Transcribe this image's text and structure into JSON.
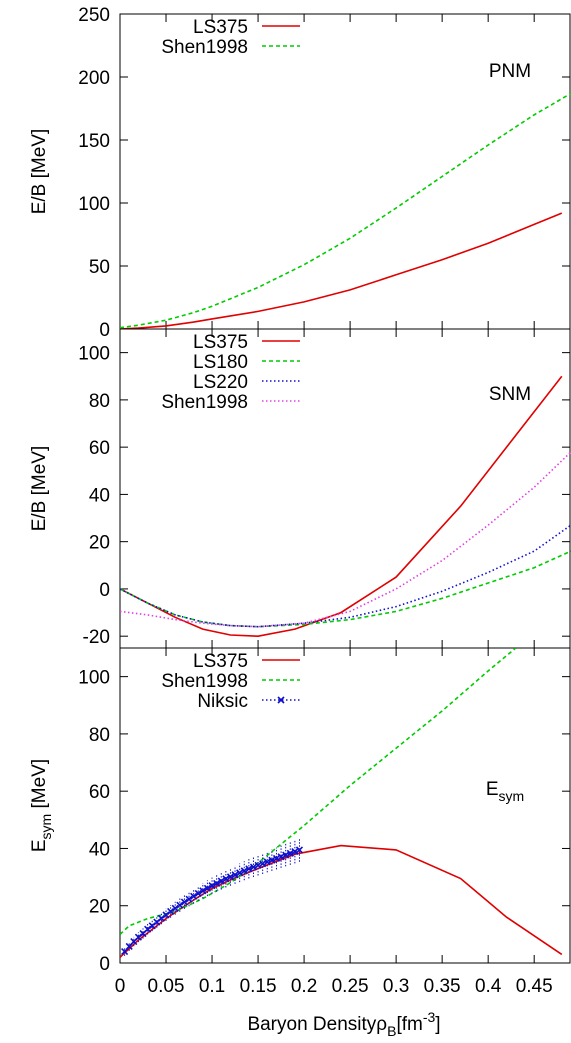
{
  "chart_data": [
    {
      "type": "line",
      "title": "",
      "annotation": "PNM",
      "ylabel": "E/B [MeV]",
      "xlabel": "",
      "xlim": [
        0,
        0.49
      ],
      "ylim": [
        0,
        250
      ],
      "yticks": [
        0,
        50,
        100,
        150,
        200,
        250
      ],
      "legend_position": "top-left",
      "series": [
        {
          "name": "LS375",
          "color": "#e00000",
          "dash": "solid",
          "x": [
            0,
            0.02,
            0.05,
            0.08,
            0.1,
            0.15,
            0.2,
            0.25,
            0.3,
            0.35,
            0.4,
            0.45,
            0.48
          ],
          "y": [
            0,
            0.7,
            2.5,
            5.5,
            8,
            14,
            21.5,
            31,
            43,
            55,
            68,
            83,
            92
          ]
        },
        {
          "name": "Shen1998",
          "color": "#00cc00",
          "dash": "4,3",
          "x": [
            0,
            0.02,
            0.05,
            0.08,
            0.1,
            0.15,
            0.2,
            0.25,
            0.3,
            0.35,
            0.4,
            0.45,
            0.49
          ],
          "y": [
            1,
            3,
            7,
            13,
            18,
            33,
            51,
            72,
            96,
            121,
            146,
            170,
            187
          ]
        }
      ]
    },
    {
      "type": "line",
      "title": "",
      "annotation": "SNM",
      "ylabel": "E/B [MeV]",
      "xlabel": "",
      "xlim": [
        0,
        0.49
      ],
      "ylim": [
        -25,
        110
      ],
      "yticks": [
        -20,
        0,
        20,
        40,
        60,
        80,
        100
      ],
      "legend_position": "top-left",
      "series": [
        {
          "name": "LS375",
          "color": "#e00000",
          "dash": "solid",
          "x": [
            0,
            0.03,
            0.06,
            0.09,
            0.12,
            0.15,
            0.19,
            0.24,
            0.3,
            0.37,
            0.42,
            0.48
          ],
          "y": [
            0,
            -6,
            -12,
            -17,
            -19.5,
            -20,
            -17,
            -10,
            5,
            35,
            60,
            90
          ]
        },
        {
          "name": "LS180",
          "color": "#00cc00",
          "dash": "4,3",
          "x": [
            0,
            0.03,
            0.06,
            0.09,
            0.12,
            0.15,
            0.2,
            0.25,
            0.3,
            0.35,
            0.4,
            0.45,
            0.49
          ],
          "y": [
            0,
            -6,
            -11,
            -14,
            -15.5,
            -16,
            -15,
            -13,
            -9.5,
            -4,
            2.5,
            9,
            16
          ]
        },
        {
          "name": "LS220",
          "color": "#1010cc",
          "dash": "1.5,2.5",
          "x": [
            0,
            0.03,
            0.06,
            0.09,
            0.12,
            0.15,
            0.2,
            0.25,
            0.3,
            0.35,
            0.4,
            0.45,
            0.49
          ],
          "y": [
            0,
            -6,
            -11,
            -14,
            -15.5,
            -16,
            -14.5,
            -12,
            -7.5,
            -1,
            7,
            16,
            27
          ]
        },
        {
          "name": "Shen1998",
          "color": "#e040e0",
          "dash": "1.5,2.5",
          "x": [
            0,
            0.03,
            0.06,
            0.09,
            0.12,
            0.15,
            0.2,
            0.25,
            0.3,
            0.35,
            0.4,
            0.45,
            0.49
          ],
          "y": [
            -9.5,
            -11,
            -13,
            -14.5,
            -15.5,
            -16,
            -14.5,
            -9.5,
            0,
            12,
            27,
            43,
            58
          ]
        }
      ]
    },
    {
      "type": "line",
      "title": "",
      "annotation": "E",
      "annotation_sub": "sym",
      "ylabel": "E",
      "ylabel_sub": "sym",
      "ylabel_unit": " [MeV]",
      "xlabel": "Baryon Density",
      "xlabel_rho": "ρ",
      "xlabel_rho_sub": "B",
      "xlabel_unit": "[fm",
      "xlabel_unit_exp": "-3",
      "xlabel_unit_end": "]",
      "xlim": [
        0,
        0.49
      ],
      "ylim": [
        0,
        110
      ],
      "xticks": [
        "0",
        "0.05",
        "0.1",
        "0.15",
        "0.2",
        "0.25",
        "0.3",
        "0.35",
        "0.4",
        "0.45"
      ],
      "xtick_values": [
        0,
        0.05,
        0.1,
        0.15,
        0.2,
        0.25,
        0.3,
        0.35,
        0.4,
        0.45
      ],
      "yticks": [
        0,
        20,
        40,
        60,
        80,
        100
      ],
      "legend_position": "top-left",
      "series": [
        {
          "name": "LS375",
          "color": "#e00000",
          "dash": "solid",
          "x": [
            0,
            0.02,
            0.05,
            0.08,
            0.1,
            0.12,
            0.15,
            0.19,
            0.24,
            0.3,
            0.37,
            0.42,
            0.48
          ],
          "y": [
            2,
            8,
            15.5,
            22,
            26,
            29,
            33,
            38,
            41,
            39.5,
            29.5,
            16,
            3
          ]
        },
        {
          "name": "Shen1998",
          "color": "#00cc00",
          "dash": "4,3",
          "x": [
            0,
            0.01,
            0.03,
            0.06,
            0.09,
            0.12,
            0.15,
            0.2,
            0.25,
            0.3,
            0.35,
            0.4,
            0.43
          ],
          "y": [
            10,
            13,
            15.5,
            18,
            22.5,
            28,
            35,
            48,
            62,
            75,
            88,
            102,
            110
          ]
        },
        {
          "name": "Niksic",
          "color": "#1010cc",
          "dash": "1.5,2.5",
          "marker": "x",
          "x": [
            0.005,
            0.01,
            0.015,
            0.02,
            0.025,
            0.03,
            0.035,
            0.04,
            0.045,
            0.05,
            0.055,
            0.06,
            0.065,
            0.07,
            0.075,
            0.08,
            0.085,
            0.09,
            0.095,
            0.1,
            0.105,
            0.11,
            0.115,
            0.12,
            0.125,
            0.13,
            0.135,
            0.14,
            0.145,
            0.15,
            0.155,
            0.16,
            0.165,
            0.17,
            0.175,
            0.18,
            0.185,
            0.19,
            0.195
          ],
          "y": [
            4,
            5.8,
            7.5,
            9,
            10.3,
            11.8,
            13,
            14.3,
            15.6,
            16.8,
            18,
            19.1,
            20.2,
            21.3,
            22.3,
            23.3,
            24.3,
            25.2,
            26.1,
            27,
            27.8,
            28.6,
            29.4,
            30.1,
            30.8,
            31.5,
            32.2,
            32.9,
            33.5,
            34.1,
            34.7,
            35.3,
            35.9,
            36.5,
            37.1,
            37.7,
            38.3,
            38.9,
            39.5
          ]
        }
      ]
    }
  ]
}
